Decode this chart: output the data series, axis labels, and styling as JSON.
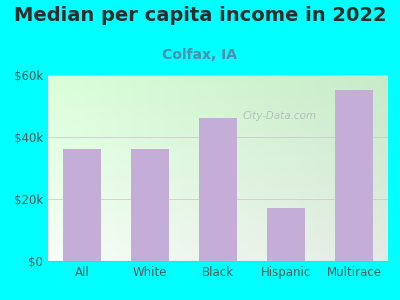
{
  "title": "Median per capita income in 2022",
  "subtitle": "Colfax, IA",
  "categories": [
    "All",
    "White",
    "Black",
    "Hispanic",
    "Multirace"
  ],
  "values": [
    36000,
    36000,
    46000,
    17000,
    55000
  ],
  "bar_color": "#c4aed8",
  "background_color": "#00ffff",
  "ylim": [
    0,
    60000
  ],
  "yticks": [
    0,
    20000,
    40000,
    60000
  ],
  "ytick_labels": [
    "$0",
    "$20k",
    "$40k",
    "$60k"
  ],
  "title_fontsize": 14,
  "subtitle_fontsize": 10,
  "title_color": "#2d2d2d",
  "subtitle_color": "#4d8fac",
  "tick_color": "#555555",
  "watermark_text": "City-Data.com"
}
